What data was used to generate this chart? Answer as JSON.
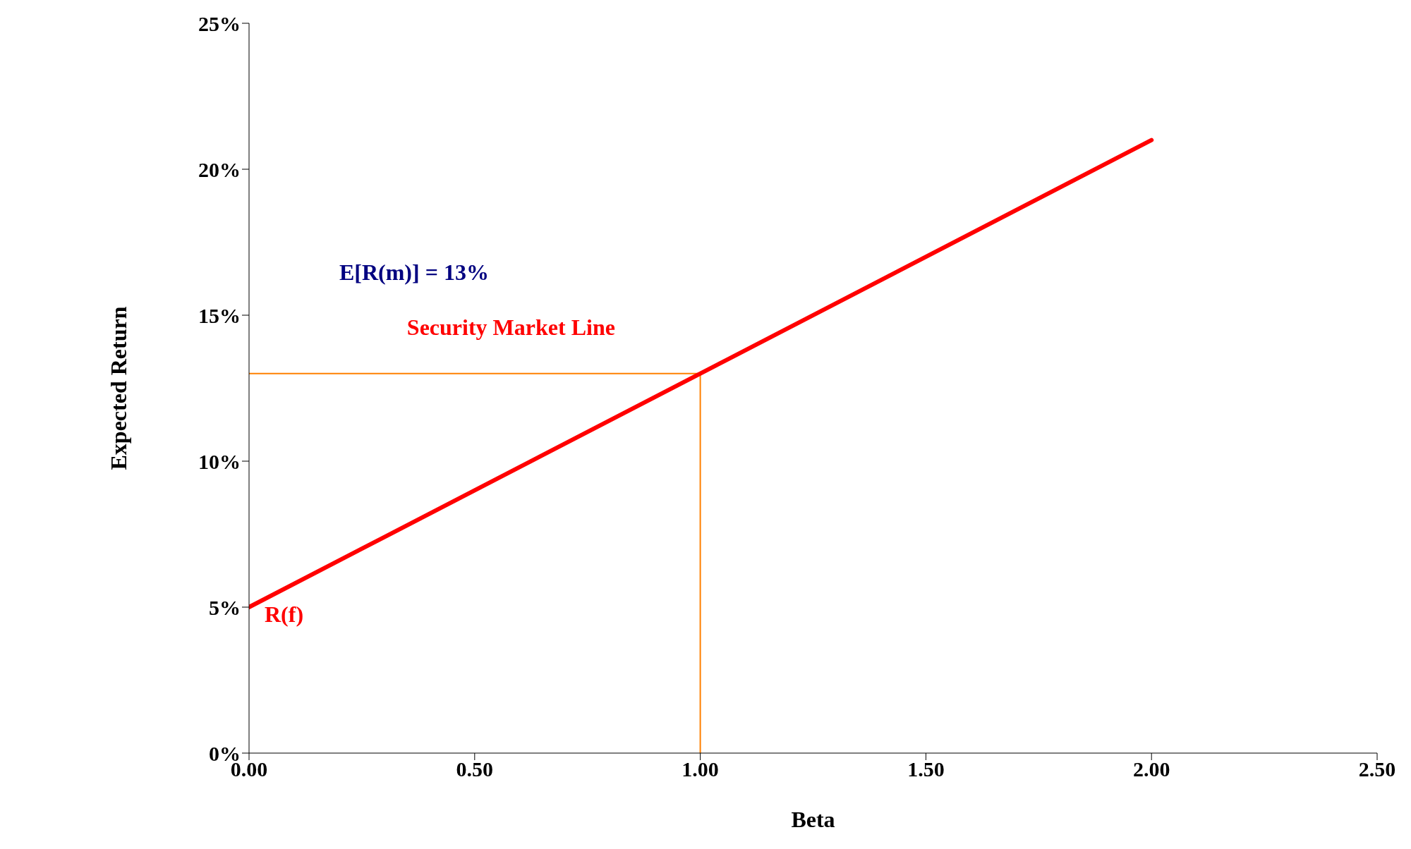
{
  "chart_data": {
    "type": "line",
    "xlabel": "Beta",
    "ylabel": "Expected Return",
    "x": [
      0,
      2
    ],
    "series": [
      {
        "color": "#ff0000",
        "values": [
          5,
          21
        ]
      }
    ],
    "xlim": [
      0,
      2.5
    ],
    "xticks": [
      {
        "value": 0,
        "label": "0.00"
      },
      {
        "value": 0.5,
        "label": "0.50"
      },
      {
        "value": 1,
        "label": "1.00"
      },
      {
        "value": 1.5,
        "label": "1.50"
      },
      {
        "value": 2,
        "label": "2.00"
      },
      {
        "value": 2.5,
        "label": "2.50"
      }
    ],
    "ylim": [
      0,
      25
    ],
    "yticks": [
      {
        "value": 0,
        "label": "0%"
      },
      {
        "value": 5,
        "label": "5%"
      },
      {
        "value": 10,
        "label": "10%"
      },
      {
        "value": 15,
        "label": "15%"
      },
      {
        "value": 20,
        "label": "20%"
      },
      {
        "value": 25,
        "label": "25%"
      }
    ],
    "ref_lines": [
      {
        "axis": "x",
        "value": 1,
        "color": "#ff8000"
      },
      {
        "axis": "y",
        "value": 13,
        "color": "#ff8000"
      }
    ],
    "annotations": [
      "E[R(m)] = 13%",
      "Security Market Line",
      {
        "text": "R(f)",
        "x": 0,
        "y": 5
      }
    ],
    "marker": "none",
    "line_style": "solid"
  }
}
